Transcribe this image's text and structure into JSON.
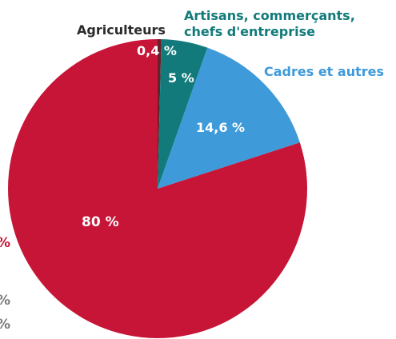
{
  "chart_data": {
    "type": "pie",
    "title": "",
    "categories": [
      "Agriculteurs",
      "Artisans, commerçants, chefs d'entreprise",
      "Cadres et autres",
      ""
    ],
    "values": [
      0.4,
      5,
      14.6,
      80
    ],
    "value_labels": [
      "0,4 %",
      "5 %",
      "14,6 %",
      "80 %"
    ],
    "colors": [
      "#6b1f2a",
      "#127a7a",
      "#3e9ad8",
      "#c61537"
    ],
    "label_colors": {
      "category_dark": "#2b2b2b",
      "category_teal": "#127a7a",
      "category_blue": "#3e9ad8",
      "value_light": "#ffffff"
    },
    "start_angle_deg": 0,
    "direction": "clockwise"
  },
  "labels": {
    "agriculteurs": "Agriculteurs",
    "artisans_line1": "Artisans, commerçants,",
    "artisans_line2": "chefs d'entreprise",
    "cadres": "Cadres et autres",
    "pct_agri": "0,4 %",
    "pct_artisans": "5 %",
    "pct_cadres": "14,6 %",
    "pct_other": "80 %"
  },
  "cropped_edge_text": {
    "left_fragments": [
      "%",
      "%",
      "%"
    ],
    "left_fragment_colors": [
      "#c61537",
      "#7a7a7a",
      "#7a7a7a"
    ]
  }
}
